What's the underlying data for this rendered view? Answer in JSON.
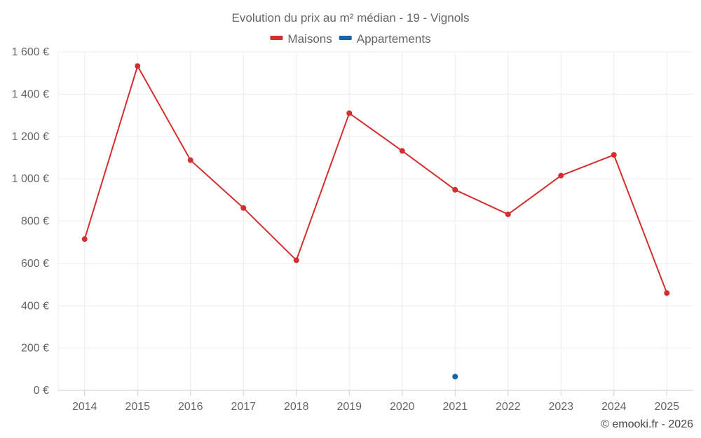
{
  "chart_data": {
    "type": "line",
    "title": "Evolution du prix au m² médian - 19 - Vignols",
    "categories": [
      "2014",
      "2015",
      "2016",
      "2017",
      "2018",
      "2019",
      "2020",
      "2021",
      "2022",
      "2023",
      "2024",
      "2025"
    ],
    "series": [
      {
        "name": "Maisons",
        "color": "#d32f2f",
        "values": [
          715,
          1533,
          1088,
          862,
          615,
          1310,
          1132,
          948,
          832,
          1015,
          1113,
          460
        ]
      },
      {
        "name": "Appartements",
        "color": "#1565a8",
        "values": [
          null,
          null,
          null,
          null,
          null,
          null,
          null,
          65,
          null,
          null,
          null,
          null
        ]
      }
    ],
    "ylim": [
      0,
      1600
    ],
    "yticks": [
      0,
      200,
      400,
      600,
      800,
      1000,
      1200,
      1400,
      1600
    ],
    "ytick_labels": [
      "0 €",
      "200 €",
      "400 €",
      "600 €",
      "800 €",
      "1 000 €",
      "1 200 €",
      "1 400 €",
      "1 600 €"
    ],
    "xlabel": "",
    "ylabel": "",
    "legend_position": "top-center",
    "credit": "© emooki.fr - 2026"
  }
}
